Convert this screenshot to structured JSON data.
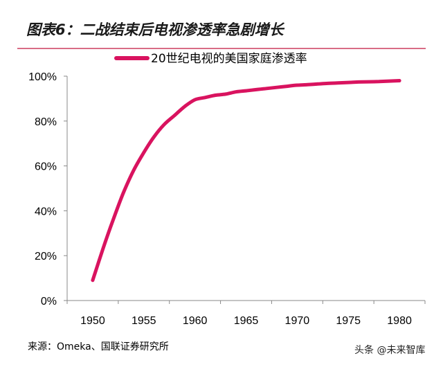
{
  "header": {
    "title": "图表6：二战结束后电视渗透率急剧增长"
  },
  "source": "来源：Omeka、国联证券研究所",
  "watermark": "头条 @未来智库",
  "colors": {
    "series": "#d9135f",
    "header_rule": "#c0143c",
    "axis": "#888888"
  },
  "chart_data": {
    "type": "line",
    "title": "",
    "xlabel": "",
    "ylabel": "",
    "xlim": [
      1947.5,
      1982.5
    ],
    "ylim": [
      0,
      100
    ],
    "y_ticks": [
      0,
      20,
      40,
      60,
      80,
      100
    ],
    "y_tick_labels": [
      "0%",
      "20%",
      "40%",
      "60%",
      "80%",
      "100%"
    ],
    "x_ticks": [
      1950,
      1955,
      1960,
      1965,
      1970,
      1975,
      1980
    ],
    "x_tick_labels": [
      "1950",
      "1955",
      "1960",
      "1965",
      "1970",
      "1975",
      "1980"
    ],
    "grid": false,
    "legend": "top-center",
    "series": [
      {
        "name": "20世纪电视的美国家庭渗透率",
        "x": [
          1950,
          1951,
          1952,
          1953,
          1954,
          1955,
          1956,
          1957,
          1958,
          1959,
          1960,
          1961,
          1962,
          1963,
          1964,
          1965,
          1966,
          1967,
          1968,
          1969,
          1970,
          1971,
          1972,
          1973,
          1974,
          1975,
          1976,
          1977,
          1978,
          1979,
          1980
        ],
        "y": [
          9,
          23,
          36,
          48,
          58,
          66,
          73,
          78.5,
          82.5,
          86.5,
          89.5,
          90.5,
          91.5,
          92,
          93,
          93.5,
          94,
          94.5,
          95,
          95.5,
          96,
          96.2,
          96.5,
          96.8,
          97,
          97.2,
          97.4,
          97.5,
          97.6,
          97.8,
          98
        ]
      }
    ]
  }
}
